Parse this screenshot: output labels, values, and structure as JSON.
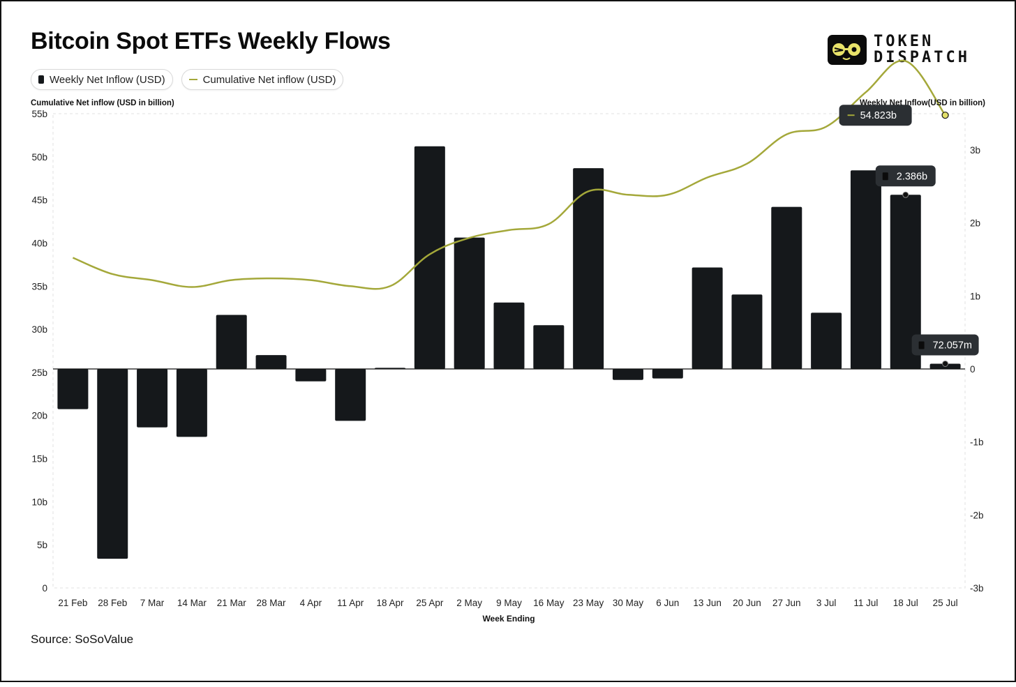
{
  "title": "Bitcoin Spot ETFs Weekly Flows",
  "logo": {
    "line1": "TOKEN",
    "line2": "DISPATCH"
  },
  "legend": {
    "bar_label": "Weekly Net Inflow (USD)",
    "line_label": "Cumulative Net inflow (USD)"
  },
  "source": "Source: SoSoValue",
  "colors": {
    "bar": "#15181b",
    "line": "#a4a83a",
    "grid": "#e2e2e2",
    "tooltip": "#2b2f33"
  },
  "chart_data": {
    "type": "bar+line",
    "x_label": "Week Ending",
    "left_axis_label": "Cumulative Net inflow (USD in billion)",
    "right_axis_label": "Weekly Net Inflow(USD in billion)",
    "left_ylim": [
      0,
      55
    ],
    "left_ticks": [
      {
        "v": 55,
        "label": "55b"
      },
      {
        "v": 50,
        "label": "50b"
      },
      {
        "v": 45,
        "label": "45b"
      },
      {
        "v": 40,
        "label": "40b"
      },
      {
        "v": 35,
        "label": "35b"
      },
      {
        "v": 30,
        "label": "30b"
      },
      {
        "v": 25,
        "label": "25b"
      },
      {
        "v": 20,
        "label": "20b"
      },
      {
        "v": 15,
        "label": "15b"
      },
      {
        "v": 10,
        "label": "10b"
      },
      {
        "v": 5,
        "label": "5b"
      },
      {
        "v": 0,
        "label": "0"
      }
    ],
    "right_ylim": [
      -3,
      3.5
    ],
    "right_ticks": [
      {
        "v": 3,
        "label": "3b"
      },
      {
        "v": 2,
        "label": "2b"
      },
      {
        "v": 1,
        "label": "1b"
      },
      {
        "v": 0,
        "label": "0"
      },
      {
        "v": -1,
        "label": "-1b"
      },
      {
        "v": -2,
        "label": "-2b"
      },
      {
        "v": -3,
        "label": "-3b"
      }
    ],
    "categories": [
      "21 Feb",
      "28 Feb",
      "7 Mar",
      "14 Mar",
      "21 Mar",
      "28 Mar",
      "4 Apr",
      "11 Apr",
      "18 Apr",
      "25 Apr",
      "2 May",
      "9 May",
      "16 May",
      "23 May",
      "30 May",
      "6 Jun",
      "13 Jun",
      "20 Jun",
      "27 Jun",
      "3 Jul",
      "11 Jul",
      "18 Jul",
      "25 Jul"
    ],
    "series": [
      {
        "name": "Weekly Net Inflow (USD)",
        "type": "bar",
        "axis": "right",
        "values": [
          -0.55,
          -2.6,
          -0.8,
          -0.93,
          0.74,
          0.19,
          -0.17,
          -0.71,
          0.015,
          3.05,
          1.8,
          0.91,
          0.6,
          2.75,
          -0.15,
          -0.13,
          1.39,
          1.02,
          2.22,
          0.77,
          2.72,
          2.386,
          0.072
        ]
      },
      {
        "name": "Cumulative Net inflow (USD)",
        "type": "line",
        "axis": "left",
        "values": [
          38.3,
          36.4,
          35.7,
          34.9,
          35.7,
          35.9,
          35.7,
          35.0,
          35.0,
          38.7,
          40.6,
          41.5,
          42.2,
          46.0,
          45.6,
          45.6,
          47.6,
          49.2,
          52.6,
          53.5,
          57.5,
          61.1,
          54.823
        ]
      }
    ],
    "tooltips": [
      {
        "series": "line",
        "index": 22,
        "label": "54.823b"
      },
      {
        "series": "bar",
        "index": 21,
        "label": "2.386b"
      },
      {
        "series": "bar",
        "index": 22,
        "label": "72.057m"
      }
    ]
  }
}
